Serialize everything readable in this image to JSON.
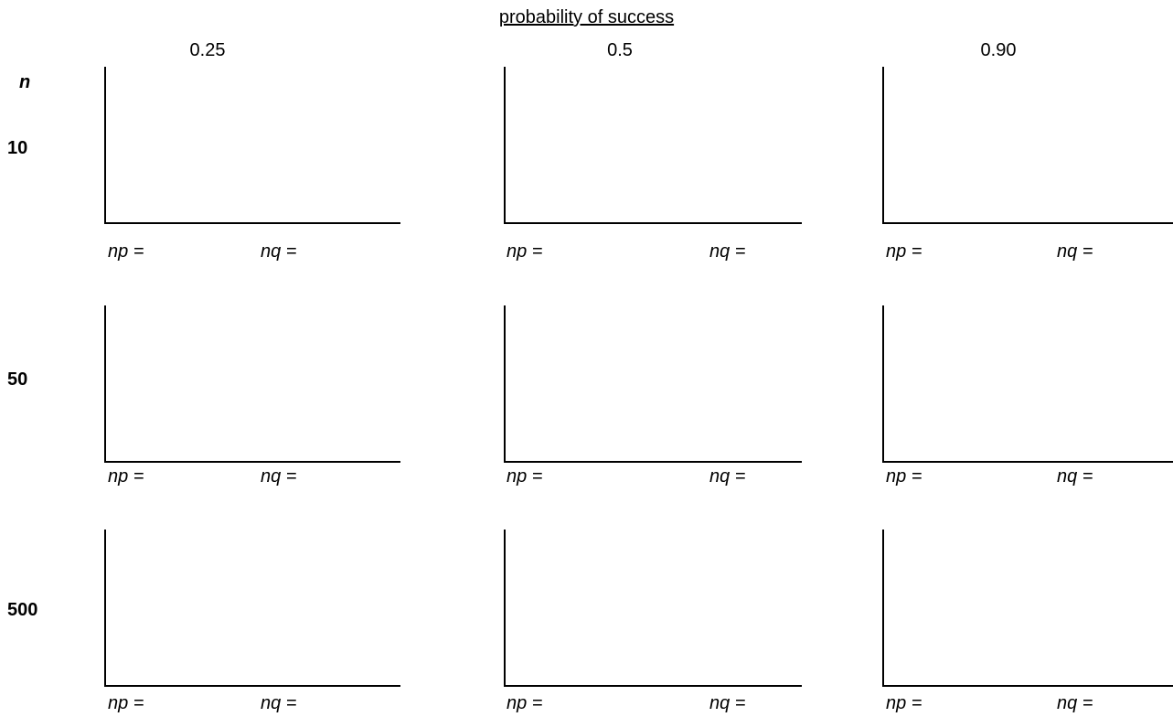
{
  "header": {
    "title": "probability of success",
    "n_label": "n"
  },
  "columns": [
    "0.25",
    "0.5",
    "0.90"
  ],
  "rows": [
    "10",
    "50",
    "500"
  ],
  "labels": {
    "np": "np =",
    "nq": "nq ="
  }
}
